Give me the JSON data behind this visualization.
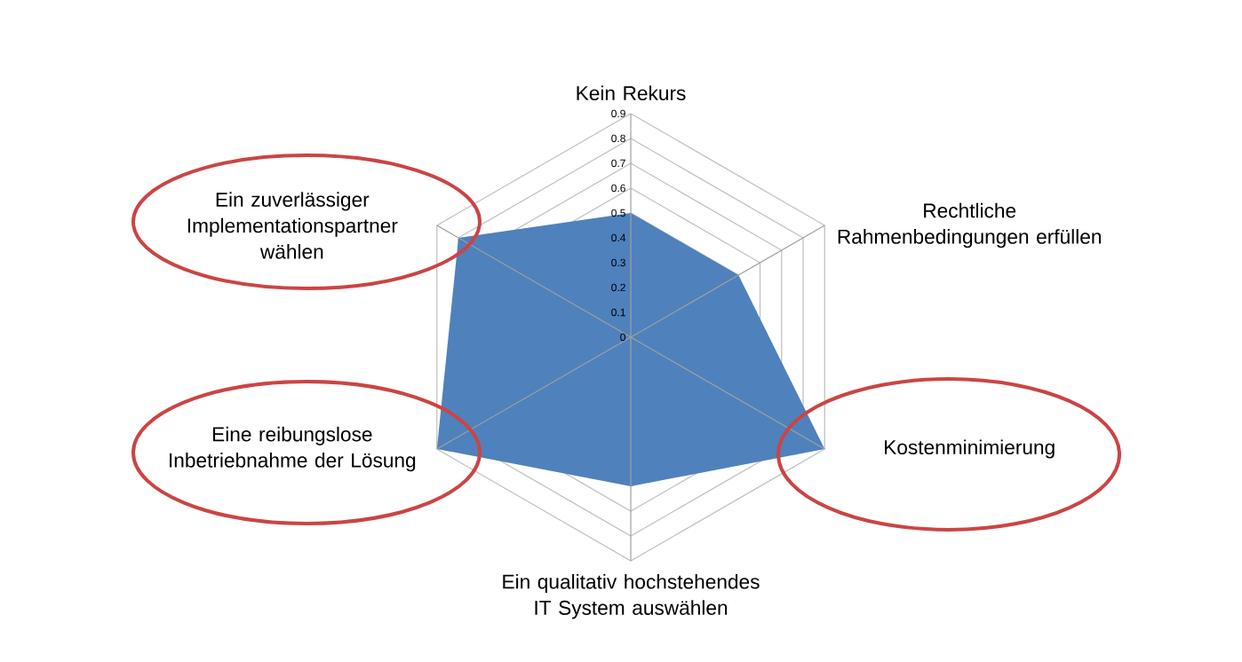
{
  "chart_data": {
    "type": "radar",
    "categories": [
      "Kein Rekurs",
      "Rechtliche Rahmenbedingungen erfüllen",
      "Kostenminimierung",
      "Ein qualitativ hochstehendes IT System auswählen",
      "Eine reibungslose Inbetriebnahme der Lösung",
      "Ein zuverlässiger Implementationspartner wählen"
    ],
    "series": [
      {
        "color": "#4f81bd",
        "values": [
          0.5,
          0.5,
          0.9,
          0.6,
          0.9,
          0.8
        ]
      }
    ],
    "ylim": [
      0,
      0.9
    ],
    "yticks": [
      0,
      0.1,
      0.2,
      0.3,
      0.4,
      0.5,
      0.6,
      0.7,
      0.8,
      0.9
    ],
    "grid": true
  }
}
